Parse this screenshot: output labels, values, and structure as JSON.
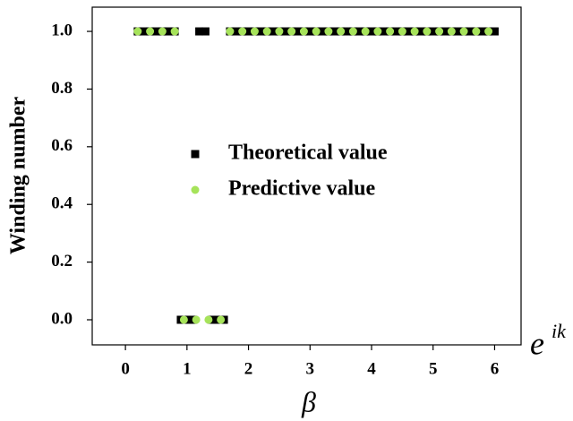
{
  "chart_data": {
    "type": "scatter",
    "x_label": "β",
    "y_label": "Winding number",
    "annotation": {
      "text": "e",
      "superscript": "ik"
    },
    "xlim": [
      -0.54,
      6.43
    ],
    "ylim": [
      -0.087,
      1.084
    ],
    "xticks": [
      0,
      1,
      2,
      3,
      4,
      5,
      6
    ],
    "yticks": [
      {
        "value": 0,
        "label": "0.0"
      },
      0.2,
      0.4,
      0.6,
      0.8,
      {
        "value": 1,
        "label": "1.0"
      }
    ],
    "legend": "center",
    "series": [
      {
        "name": "Theoretical value",
        "color": "#000000",
        "marker": "square",
        "x": [
          0.2,
          0.3,
          0.4,
          0.5,
          0.6,
          0.7,
          0.8,
          0.9,
          1.0,
          1.1,
          1.2,
          1.3,
          1.4,
          1.5,
          1.6,
          1.7,
          1.8,
          1.9,
          2.0,
          2.1,
          2.2,
          2.3,
          2.4,
          2.5,
          2.6,
          2.7,
          2.8,
          2.9,
          3.0,
          3.1,
          3.2,
          3.3,
          3.4,
          3.5,
          3.6,
          3.7,
          3.8,
          3.9,
          4.0,
          4.1,
          4.2,
          4.3,
          4.4,
          4.5,
          4.6,
          4.7,
          4.8,
          4.9,
          5.0,
          5.1,
          5.2,
          5.3,
          5.4,
          5.5,
          5.6,
          5.7,
          5.8,
          5.9,
          6.0
        ],
        "values": [
          1,
          1,
          1,
          1,
          1,
          1,
          1,
          0,
          0,
          0,
          1,
          1,
          0,
          0,
          0,
          1,
          1,
          1,
          1,
          1,
          1,
          1,
          1,
          1,
          1,
          1,
          1,
          1,
          1,
          1,
          1,
          1,
          1,
          1,
          1,
          1,
          1,
          1,
          1,
          1,
          1,
          1,
          1,
          1,
          1,
          1,
          1,
          1,
          1,
          1,
          1,
          1,
          1,
          1,
          1,
          1,
          1,
          1,
          1
        ]
      },
      {
        "name": "Predictive value",
        "color": "#a6e35a",
        "marker": "circle",
        "x": [
          0.2,
          0.4,
          0.6,
          0.8,
          0.95,
          1.15,
          1.35,
          1.55,
          1.7,
          1.9,
          2.1,
          2.3,
          2.5,
          2.7,
          2.9,
          3.1,
          3.3,
          3.5,
          3.7,
          3.9,
          4.1,
          4.3,
          4.5,
          4.7,
          4.9,
          5.1,
          5.3,
          5.5,
          5.7,
          5.9
        ],
        "values": [
          1,
          1,
          1,
          1,
          0,
          0,
          0,
          0,
          1,
          1,
          1,
          1,
          1,
          1,
          1,
          1,
          1,
          1,
          1,
          1,
          1,
          1,
          1,
          1,
          1,
          1,
          1,
          1,
          1,
          1
        ]
      }
    ]
  }
}
